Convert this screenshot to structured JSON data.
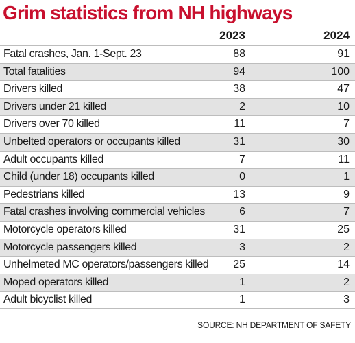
{
  "chart_data": {
    "type": "table",
    "title": "Grim statistics from NH highways",
    "columns": [
      "2023",
      "2024"
    ],
    "rows": [
      {
        "label": "Fatal crashes, Jan. 1-Sept. 23",
        "values": [
          "88",
          "91"
        ]
      },
      {
        "label": "Total fatalities",
        "values": [
          "94",
          "100"
        ]
      },
      {
        "label": "Drivers killed",
        "values": [
          "38",
          "47"
        ]
      },
      {
        "label": "Drivers under 21 killed",
        "values": [
          "2",
          "10"
        ]
      },
      {
        "label": "Drivers over 70 killed",
        "values": [
          "11",
          "7"
        ]
      },
      {
        "label": "Unbelted operators or occupants killed",
        "values": [
          "31",
          "30"
        ]
      },
      {
        "label": "Adult occupants killed",
        "values": [
          "7",
          "11"
        ]
      },
      {
        "label": "Child (under 18) occupants killed",
        "values": [
          "0",
          "1"
        ]
      },
      {
        "label": "Pedestrians killed",
        "values": [
          "13",
          "9"
        ]
      },
      {
        "label": "Fatal crashes involving commercial vehicles",
        "values": [
          "6",
          "7"
        ]
      },
      {
        "label": "Motorcycle operators killed",
        "values": [
          "31",
          "25"
        ]
      },
      {
        "label": "Motorcycle passengers killed",
        "values": [
          "3",
          "2"
        ]
      },
      {
        "label": "Unhelmeted MC operators/passengers killed",
        "values": [
          "25",
          "14"
        ]
      },
      {
        "label": "Moped operators killed",
        "values": [
          "1",
          "2"
        ]
      },
      {
        "label": "Adult bicyclist killed",
        "values": [
          "1",
          "3"
        ]
      }
    ],
    "source": "SOURCE: NH DEPARTMENT OF SAFETY"
  },
  "colors": {
    "title": "#c8102e",
    "shaded_row": "#e3e3e3",
    "rule": "#bdbdbd"
  }
}
